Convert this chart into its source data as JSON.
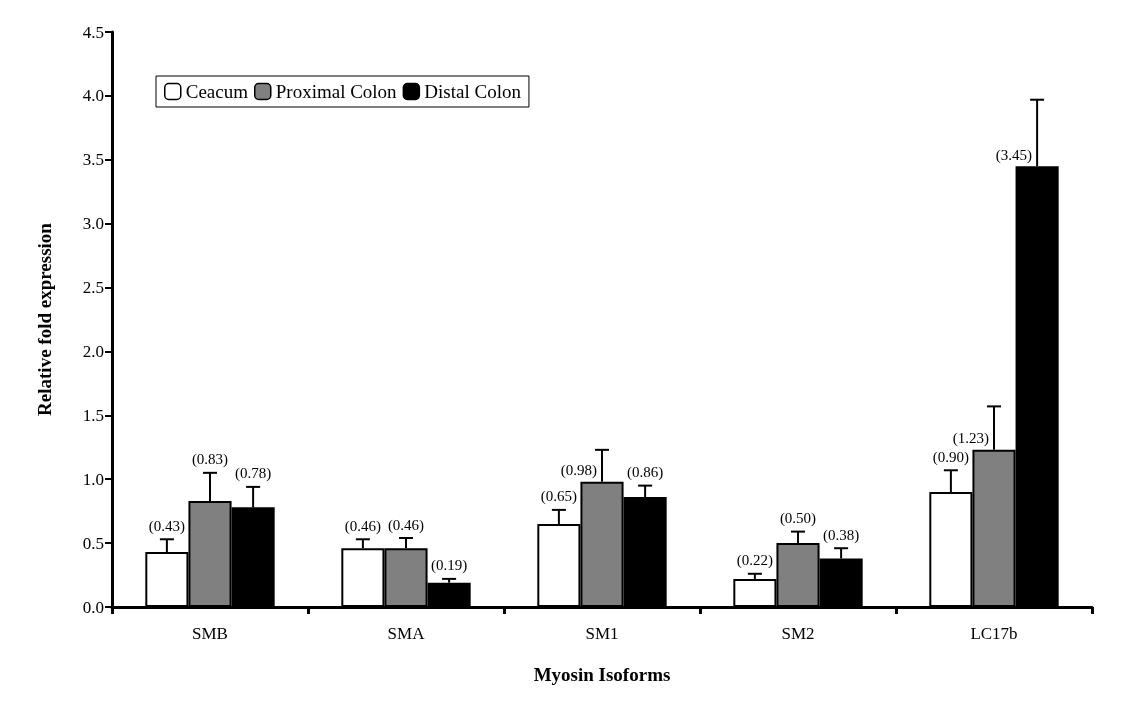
{
  "chart_data": {
    "type": "bar",
    "xlabel": "Myosin Isoforms",
    "ylabel": "Relative fold expression",
    "categories": [
      "SMB",
      "SMA",
      "SM1",
      "SM2",
      "LC17b"
    ],
    "series": [
      {
        "name": "Ceacum",
        "color": "#ffffff",
        "values": [
          0.43,
          0.46,
          0.65,
          0.22,
          0.9
        ],
        "errors": [
          [
            0.43,
            0.53
          ],
          [
            0.46,
            0.53
          ],
          [
            0.65,
            0.76
          ],
          [
            0.22,
            0.26
          ],
          [
            0.9,
            1.07
          ]
        ],
        "value_labels": [
          "(0.43)",
          "(0.46)",
          "(0.65)",
          "(0.22)",
          "(0.90)"
        ]
      },
      {
        "name": "Proximal Colon",
        "color": "#808080",
        "values": [
          0.83,
          0.46,
          0.98,
          0.5,
          1.23
        ],
        "errors": [
          [
            0.83,
            1.05
          ],
          [
            0.46,
            0.54
          ],
          [
            0.98,
            1.23
          ],
          [
            0.5,
            0.59
          ],
          [
            1.23,
            1.57
          ]
        ],
        "value_labels": [
          "(0.83)",
          "(0.46)",
          "(0.98)",
          "(0.50)",
          "(1.23)"
        ]
      },
      {
        "name": "Distal Colon",
        "color": "#000000",
        "values": [
          0.78,
          0.19,
          0.86,
          0.38,
          3.45
        ],
        "errors": [
          [
            0.78,
            0.94
          ],
          [
            0.19,
            0.22
          ],
          [
            0.86,
            0.95
          ],
          [
            0.38,
            0.46
          ],
          [
            3.45,
            3.97
          ]
        ],
        "value_labels": [
          "(0.78)",
          "(0.19)",
          "(0.86)",
          "(0.38)",
          "(3.45)"
        ]
      }
    ],
    "ylim": [
      0,
      4.5
    ],
    "yticks": [
      {
        "value": 0,
        "label": "0.0"
      },
      {
        "value": 0.5,
        "label": "0.5"
      },
      {
        "value": 1,
        "label": "1.0"
      },
      {
        "value": 1.5,
        "label": "1.5"
      },
      {
        "value": 2,
        "label": "2.0"
      },
      {
        "value": 2.5,
        "label": "2.5"
      },
      {
        "value": 3,
        "label": "3.0"
      },
      {
        "value": 3.5,
        "label": "3.5"
      },
      {
        "value": 4,
        "label": "4.0"
      },
      {
        "value": 4.5,
        "label": "4.5"
      }
    ],
    "grid": false,
    "legend": "top left"
  }
}
